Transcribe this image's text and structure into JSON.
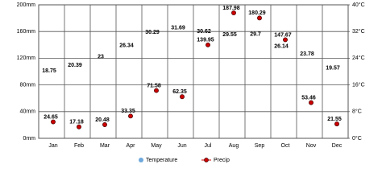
{
  "chart_data": {
    "type": "scatter",
    "categories": [
      "Jan",
      "Feb",
      "Mar",
      "Apr",
      "May",
      "Jun",
      "Jul",
      "Aug",
      "Sep",
      "Oct",
      "Nov",
      "Dec"
    ],
    "series": [
      {
        "name": "Temperature",
        "color": "#6fa8dc",
        "axis": "y2",
        "values": [
          18.75,
          20.39,
          23,
          26.34,
          30.29,
          31.69,
          30.62,
          29.55,
          29.7,
          26.14,
          23.78,
          19.57
        ]
      },
      {
        "name": "Precip",
        "color": "#cc0000",
        "values": [
          24.65,
          17.18,
          20.48,
          33.35,
          71.58,
          62.35,
          139.95,
          187.98,
          180.29,
          147.67,
          53.46,
          21.55
        ]
      }
    ],
    "ylim": [
      0,
      200
    ],
    "yticks": [
      {
        "value": 0,
        "label": "0mm"
      },
      {
        "value": 40,
        "label": "40mm"
      },
      {
        "value": 80,
        "label": "80mm"
      },
      {
        "value": 120,
        "label": "120mm"
      },
      {
        "value": 160,
        "label": "160mm"
      },
      {
        "value": 200,
        "label": "200mm"
      }
    ],
    "y2lim": [
      0,
      40
    ],
    "y2ticks": [
      {
        "value": 0,
        "label": "0°C"
      },
      {
        "value": 8,
        "label": "8°C"
      },
      {
        "value": 16,
        "label": "16°C"
      },
      {
        "value": 24,
        "label": "24°C"
      },
      {
        "value": 32,
        "label": "32°C"
      },
      {
        "value": 40,
        "label": "40°C"
      }
    ],
    "grid": true
  }
}
